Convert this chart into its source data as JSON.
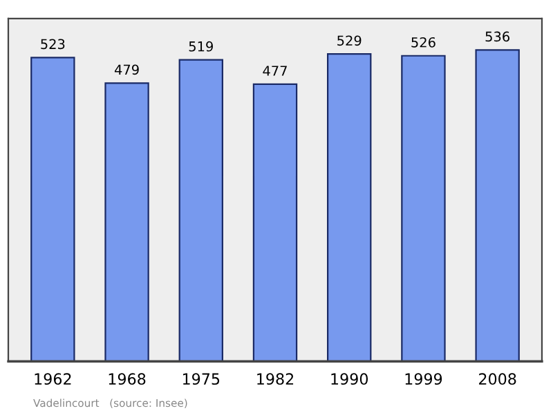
{
  "chart_data": {
    "type": "bar",
    "categories": [
      "1962",
      "1968",
      "1975",
      "1982",
      "1990",
      "1999",
      "2008"
    ],
    "values": [
      523,
      479,
      519,
      477,
      529,
      526,
      536
    ],
    "color": "#7799ee",
    "data_labels": true,
    "ylim": [
      0,
      590
    ],
    "grid": false,
    "annotations": [
      "Vadelincourt   (source: Insee)"
    ]
  }
}
